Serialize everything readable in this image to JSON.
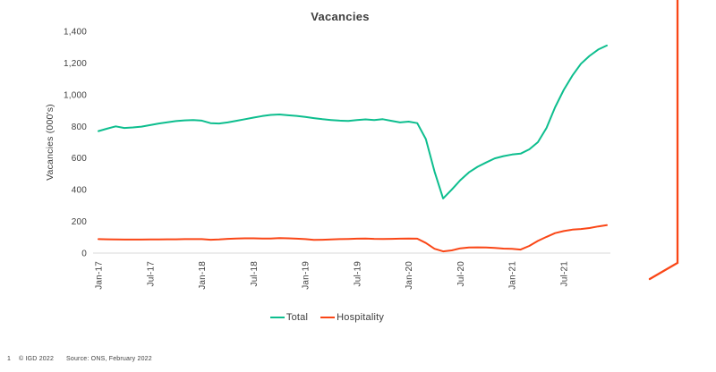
{
  "colors": {
    "background": "#ffffff",
    "text": "#3d3d3d",
    "grid": "#d9d9d9",
    "total": "#0dbe8e",
    "hospitality": "#fa4616"
  },
  "chart_data": {
    "type": "line",
    "title": "Vacancies",
    "xlabel": "",
    "ylabel": "Vacancies (000's)",
    "ylim": [
      0,
      1400
    ],
    "y_tick_step": 200,
    "y_tick_labels": [
      "0",
      "200",
      "400",
      "600",
      "800",
      "1,000",
      "1,200",
      "1,400"
    ],
    "x_tick_labels": [
      "Jan-17",
      "Jul-17",
      "Jan-18",
      "Jul-18",
      "Jan-19",
      "Jul-19",
      "Jan-20",
      "Jul-20",
      "Jan-21",
      "Jul-21"
    ],
    "x_tick_every": 6,
    "x_frequency": "monthly",
    "x_range": [
      "Jan-17",
      "Dec-21"
    ],
    "grid": "zero-baseline-only",
    "legend_position": "bottom-center",
    "series": [
      {
        "name": "Total",
        "color": "#0dbe8e",
        "values": [
          770,
          785,
          800,
          790,
          793,
          798,
          808,
          818,
          826,
          833,
          838,
          840,
          836,
          820,
          818,
          825,
          835,
          845,
          855,
          865,
          872,
          875,
          870,
          866,
          860,
          852,
          845,
          840,
          836,
          834,
          840,
          844,
          840,
          845,
          835,
          825,
          830,
          820,
          720,
          515,
          345,
          400,
          460,
          510,
          545,
          572,
          598,
          612,
          622,
          628,
          655,
          700,
          790,
          920,
          1030,
          1120,
          1195,
          1245,
          1285,
          1310
        ]
      },
      {
        "name": "Hospitality",
        "color": "#fa4616",
        "values": [
          88,
          87,
          86,
          85,
          85,
          85,
          86,
          86,
          87,
          87,
          88,
          88,
          88,
          84,
          86,
          90,
          92,
          93,
          93,
          92,
          92,
          94,
          93,
          91,
          88,
          83,
          84,
          86,
          88,
          89,
          91,
          92,
          90,
          89,
          90,
          91,
          92,
          91,
          64,
          27,
          11,
          17,
          30,
          35,
          36,
          35,
          32,
          28,
          27,
          22,
          45,
          77,
          102,
          126,
          139,
          148,
          152,
          158,
          168,
          176
        ]
      }
    ]
  },
  "decoration": {
    "color": "#fa4616"
  },
  "footer": {
    "page_number": "1",
    "copyright": "© IGD 2022",
    "source": "Source: ONS, February 2022"
  }
}
